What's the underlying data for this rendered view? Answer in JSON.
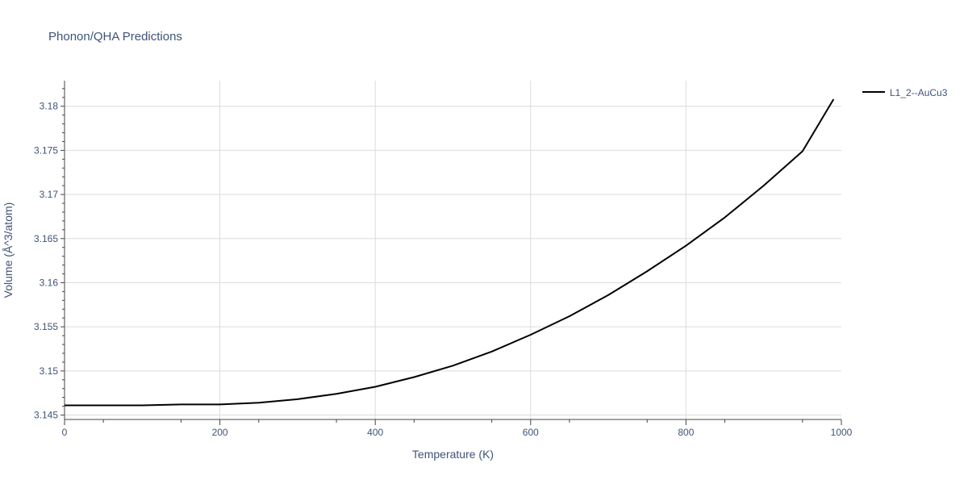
{
  "chart_data": {
    "type": "line",
    "title": "Phonon/QHA Predictions",
    "xlabel": "Temperature (K)",
    "ylabel": "Volume (Å^3/atom)",
    "xlim": [
      0,
      1000
    ],
    "ylim": [
      3.1445,
      3.1829
    ],
    "xticks": [
      0,
      200,
      400,
      600,
      800,
      1000
    ],
    "xtick_labels": [
      "0",
      "200",
      "400",
      "600",
      "800",
      "1000"
    ],
    "yticks": [
      3.145,
      3.15,
      3.155,
      3.16,
      3.165,
      3.17,
      3.175,
      3.18
    ],
    "ytick_labels": [
      "3.145",
      "3.15",
      "3.155",
      "3.16",
      "3.165",
      "3.17",
      "3.175",
      "3.18"
    ],
    "grid": true,
    "legend": "top-right outside",
    "series": [
      {
        "name": "L1_2--AuCu3",
        "color": "#000000",
        "x": [
          0,
          50,
          100,
          150,
          180,
          200,
          250,
          300,
          350,
          400,
          450,
          500,
          550,
          600,
          650,
          700,
          750,
          800,
          850,
          900,
          950,
          990
        ],
        "y": [
          3.1461,
          3.1461,
          3.1461,
          3.1462,
          3.1462,
          3.1462,
          3.1464,
          3.1468,
          3.1474,
          3.1482,
          3.1493,
          3.1506,
          3.1522,
          3.1541,
          3.1562,
          3.1586,
          3.1613,
          3.1642,
          3.1674,
          3.171,
          3.1749,
          3.1808
        ]
      }
    ]
  }
}
